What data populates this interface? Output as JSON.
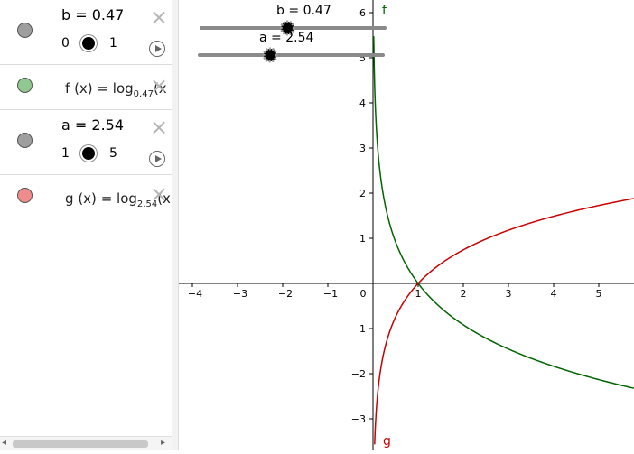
{
  "algebra": {
    "b_slider": {
      "definition": "b = 0.47",
      "min": "0",
      "max": "1",
      "value": 0.47,
      "color": "#9e9e9e"
    },
    "f_function": {
      "name": "f",
      "arg": "(x)",
      "eq": "=",
      "log": "log",
      "base": "0.47",
      "tail": "(x",
      "color": "#90c890"
    },
    "a_slider": {
      "definition": "a = 2.54",
      "min": "1",
      "max": "5",
      "value": 2.54,
      "color": "#9e9e9e"
    },
    "g_function": {
      "name": "g",
      "arg": "(x)",
      "eq": "=",
      "log": "log",
      "base": "2.54",
      "tail": "(x",
      "color": "#f08c8c"
    },
    "scroll": {
      "left_arrow": "◂",
      "right_arrow": "▸"
    }
  },
  "graphics": {
    "slider_b_label": "b = 0.47",
    "slider_a_label": "a = 2.54",
    "x_ticks": [
      "−4",
      "−3",
      "−2",
      "−1",
      "0",
      "1",
      "2",
      "3",
      "4",
      "5"
    ],
    "y_ticks": [
      "6",
      "5",
      "4",
      "3",
      "2",
      "1",
      "−1",
      "−2",
      "−3"
    ],
    "label_f": "f",
    "label_g": "g",
    "f_color": "#006400",
    "g_color": "#c80000"
  }
}
